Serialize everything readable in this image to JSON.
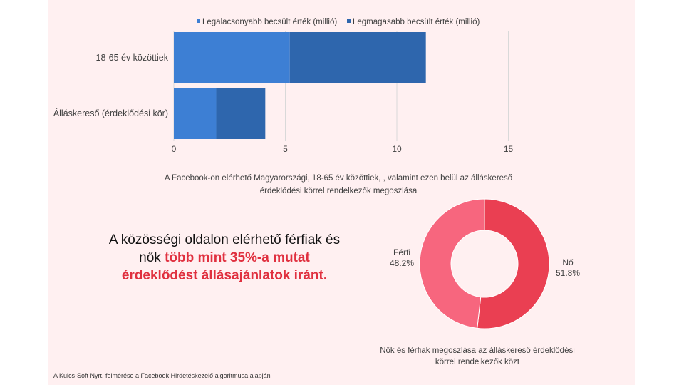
{
  "chart_data": [
    {
      "type": "bar",
      "orientation": "horizontal",
      "stacked": true,
      "categories": [
        "18-65 év közöttiek",
        "Álláskereső (érdeklődési kör)"
      ],
      "series": [
        {
          "name": "Legalacsonyabb becsült érték (millió)",
          "values": [
            5.2,
            1.9
          ],
          "color": "#3d7fd4"
        },
        {
          "name": "Legmagasabb becsült érték (millió)",
          "values": [
            6.1,
            2.2
          ],
          "color": "#2e66ad"
        }
      ],
      "xlim": [
        0,
        15
      ],
      "xticks": [
        "0",
        "5",
        "10",
        "15"
      ],
      "grid": true,
      "legend": "top",
      "caption": "A Facebook-on elérhető Magyarországi, 18-65 év közöttiek, , valamint ezen belül az álláskereső érdeklődési körrel rendelkezők megoszlása"
    },
    {
      "type": "pie",
      "donut": true,
      "labels": [
        "Nő",
        "Férfi"
      ],
      "values": [
        51.8,
        48.2
      ],
      "value_labels": [
        "51.8%",
        "48.2%"
      ],
      "colors": [
        "#ea3f52",
        "#f7667e"
      ],
      "caption": "Nők és férfiak megoszlása az álláskereső érdeklődési körrel rendelkezők közt"
    }
  ],
  "headline": {
    "line1": "A közösségi oldalon elérhető férfiak és",
    "line2_pre": "nők ",
    "line2_hl": "több  mint 35%-a mutat",
    "line3_hl": "érdeklődést állásajánlatok iránt."
  },
  "footer": "A Kulcs-Soft Nyrt. felmérése a Facebook Hirdetéskezelő algoritmusa alapján"
}
